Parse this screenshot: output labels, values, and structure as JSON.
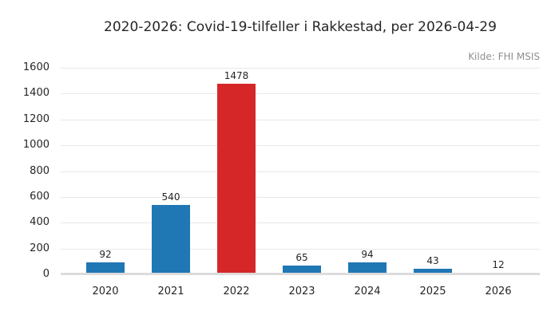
{
  "title": "2020-2026: Covid-19-tilfeller i Rakkestad, per 2026-04-29",
  "source_label": "Kilde: FHI MSIS",
  "colors": {
    "background": "#ffffff",
    "bar_blue": "#1f77b4",
    "bar_red": "#d62728",
    "grid": "#e8e8e8",
    "axis_line": "#dcdcdc",
    "text": "#262626",
    "source_text": "#8f8f8f"
  },
  "chart_data": {
    "type": "bar",
    "title": "2020-2026: Covid-19-tilfeller i Rakkestad, per 2026-04-29",
    "annotation": "Kilde: FHI MSIS",
    "categories": [
      "2020",
      "2021",
      "2022",
      "2023",
      "2024",
      "2025",
      "2026"
    ],
    "values": [
      92,
      540,
      1478,
      65,
      94,
      43,
      12
    ],
    "bar_colors": [
      "#1f77b4",
      "#1f77b4",
      "#d62728",
      "#1f77b4",
      "#1f77b4",
      "#1f77b4",
      "#1f77b4"
    ],
    "highlighted_category": "2022",
    "value_labels_shown": true,
    "xlabel": "",
    "ylabel": "",
    "ylim": [
      0,
      1600
    ],
    "yticks": [
      0,
      200,
      400,
      600,
      800,
      1000,
      1200,
      1400,
      1600
    ],
    "grid": "horizontal",
    "legend": "none"
  }
}
